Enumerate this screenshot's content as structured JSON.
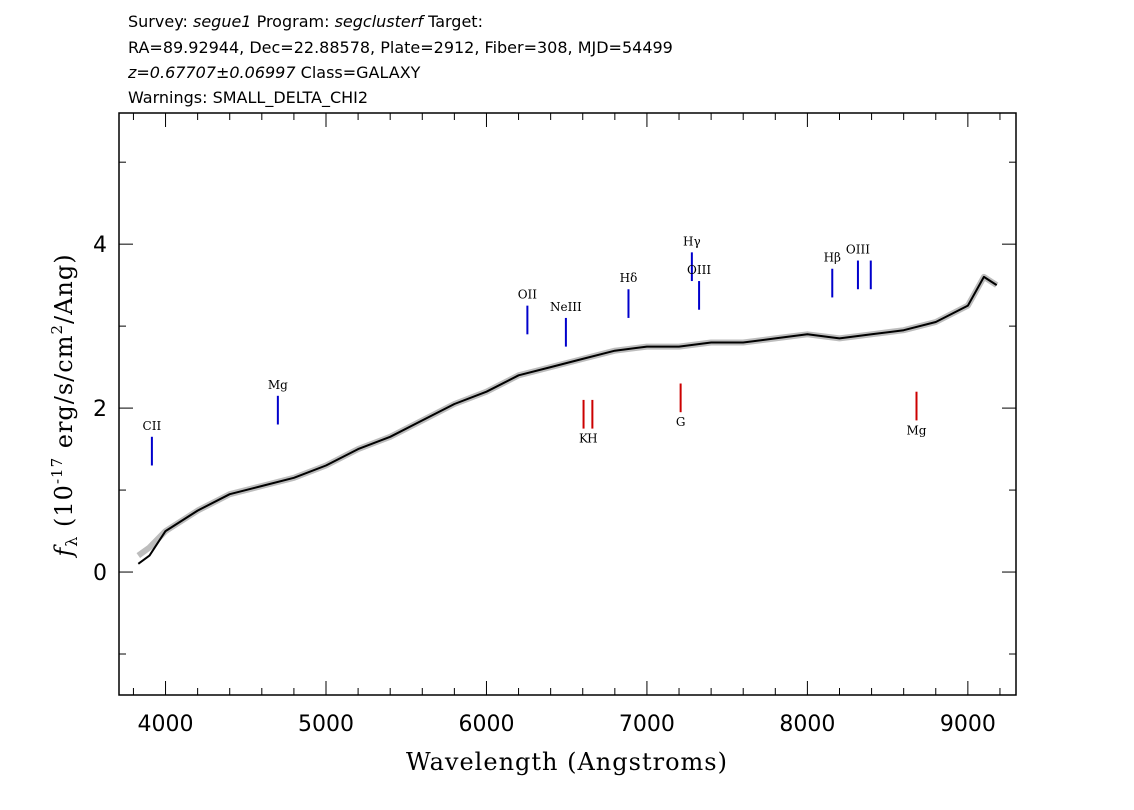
{
  "header": {
    "survey_label": "Survey:",
    "survey": "segue1",
    "program_label": "Program:",
    "program": "segclusterf",
    "target_label": "Target:",
    "line2": "RA=89.92944, Dec=22.88578, Plate=2912, Fiber=308, MJD=54499",
    "redshift": "z=0.67707±0.06997",
    "class_text": "Class=GALAXY",
    "warnings": "Warnings: SMALL_DELTA_CHI2"
  },
  "chart_data": {
    "type": "line",
    "xlabel": "Wavelength (Angstroms)",
    "ylabel": "f_λ (10^-17 erg/s/cm^2/Ang)",
    "xlim": [
      3710,
      9300
    ],
    "ylim": [
      -1.5,
      5.6
    ],
    "x_ticks": [
      4000,
      5000,
      6000,
      7000,
      8000,
      9000
    ],
    "x_tick_labels": [
      "4000",
      "5000",
      "6000",
      "7000",
      "8000",
      "9000"
    ],
    "y_ticks": [
      0,
      2,
      4
    ],
    "y_tick_labels": [
      "0",
      "2",
      "4"
    ],
    "series": [
      {
        "role": "error/noise",
        "color": "#bdbdbd",
        "x": [
          3830,
          3900,
          4000,
          4200,
          4400,
          4600,
          4800,
          5000,
          5200,
          5400,
          5600,
          5800,
          6000,
          6200,
          6400,
          6600,
          6800,
          7000,
          7200,
          7400,
          7600,
          7800,
          8000,
          8200,
          8400,
          8600,
          8800,
          9000,
          9100,
          9180
        ],
        "values": [
          0.2,
          0.3,
          0.5,
          0.75,
          0.95,
          1.05,
          1.15,
          1.3,
          1.5,
          1.65,
          1.85,
          2.05,
          2.2,
          2.4,
          2.5,
          2.6,
          2.7,
          2.75,
          2.75,
          2.8,
          2.8,
          2.85,
          2.9,
          2.85,
          2.9,
          2.95,
          3.05,
          3.25,
          3.6,
          3.5
        ]
      },
      {
        "role": "flux",
        "color": "#000000",
        "x": [
          3830,
          3900,
          4000,
          4200,
          4400,
          4600,
          4800,
          5000,
          5200,
          5400,
          5600,
          5800,
          6000,
          6200,
          6400,
          6600,
          6800,
          7000,
          7200,
          7400,
          7600,
          7800,
          8000,
          8200,
          8400,
          8600,
          8800,
          9000,
          9100,
          9180
        ],
        "values": [
          0.1,
          0.2,
          0.5,
          0.75,
          0.95,
          1.05,
          1.15,
          1.3,
          1.5,
          1.65,
          1.85,
          2.05,
          2.2,
          2.4,
          2.5,
          2.6,
          2.7,
          2.75,
          2.75,
          2.8,
          2.8,
          2.85,
          2.9,
          2.85,
          2.9,
          2.95,
          3.05,
          3.25,
          3.6,
          3.5
        ]
      }
    ],
    "emission_lines": [
      {
        "label": "CII",
        "x": 3915,
        "y_bottom": 1.3,
        "y_top": 1.65,
        "color": "#0000cc"
      },
      {
        "label": "Mg",
        "x": 4700,
        "y_bottom": 1.8,
        "y_top": 2.15,
        "color": "#0000cc"
      },
      {
        "label": "OII",
        "x": 6255,
        "y_bottom": 2.9,
        "y_top": 3.25,
        "color": "#0000cc"
      },
      {
        "label": "NeIII",
        "x": 6495,
        "y_bottom": 2.75,
        "y_top": 3.1,
        "color": "#0000cc"
      },
      {
        "label": "Hδ",
        "x": 6885,
        "y_bottom": 3.1,
        "y_top": 3.45,
        "color": "#0000cc"
      },
      {
        "label": "Hγ",
        "x": 7280,
        "y_bottom": 3.55,
        "y_top": 3.9,
        "color": "#0000cc"
      },
      {
        "label": "OIII",
        "x": 7325,
        "y_bottom": 3.2,
        "y_top": 3.55,
        "color": "#0000cc"
      },
      {
        "label": "Hβ",
        "x": 8155,
        "y_bottom": 3.35,
        "y_top": 3.7,
        "color": "#0000cc"
      },
      {
        "label": "OIII",
        "x": 8315,
        "y_bottom": 3.45,
        "y_top": 3.8,
        "color": "#0000cc"
      },
      {
        "label": "",
        "x": 8395,
        "y_bottom": 3.45,
        "y_top": 3.8,
        "color": "#0000cc"
      }
    ],
    "absorption_lines": [
      {
        "label": "K",
        "x": 6605,
        "y_bottom": 1.75,
        "y_top": 2.1,
        "color": "#cc0000"
      },
      {
        "label": "H",
        "x": 6660,
        "y_bottom": 1.75,
        "y_top": 2.1,
        "color": "#cc0000"
      },
      {
        "label": "G",
        "x": 7210,
        "y_bottom": 1.95,
        "y_top": 2.3,
        "color": "#cc0000"
      },
      {
        "label": "Mg",
        "x": 8680,
        "y_bottom": 1.85,
        "y_top": 2.2,
        "color": "#cc0000"
      }
    ]
  }
}
